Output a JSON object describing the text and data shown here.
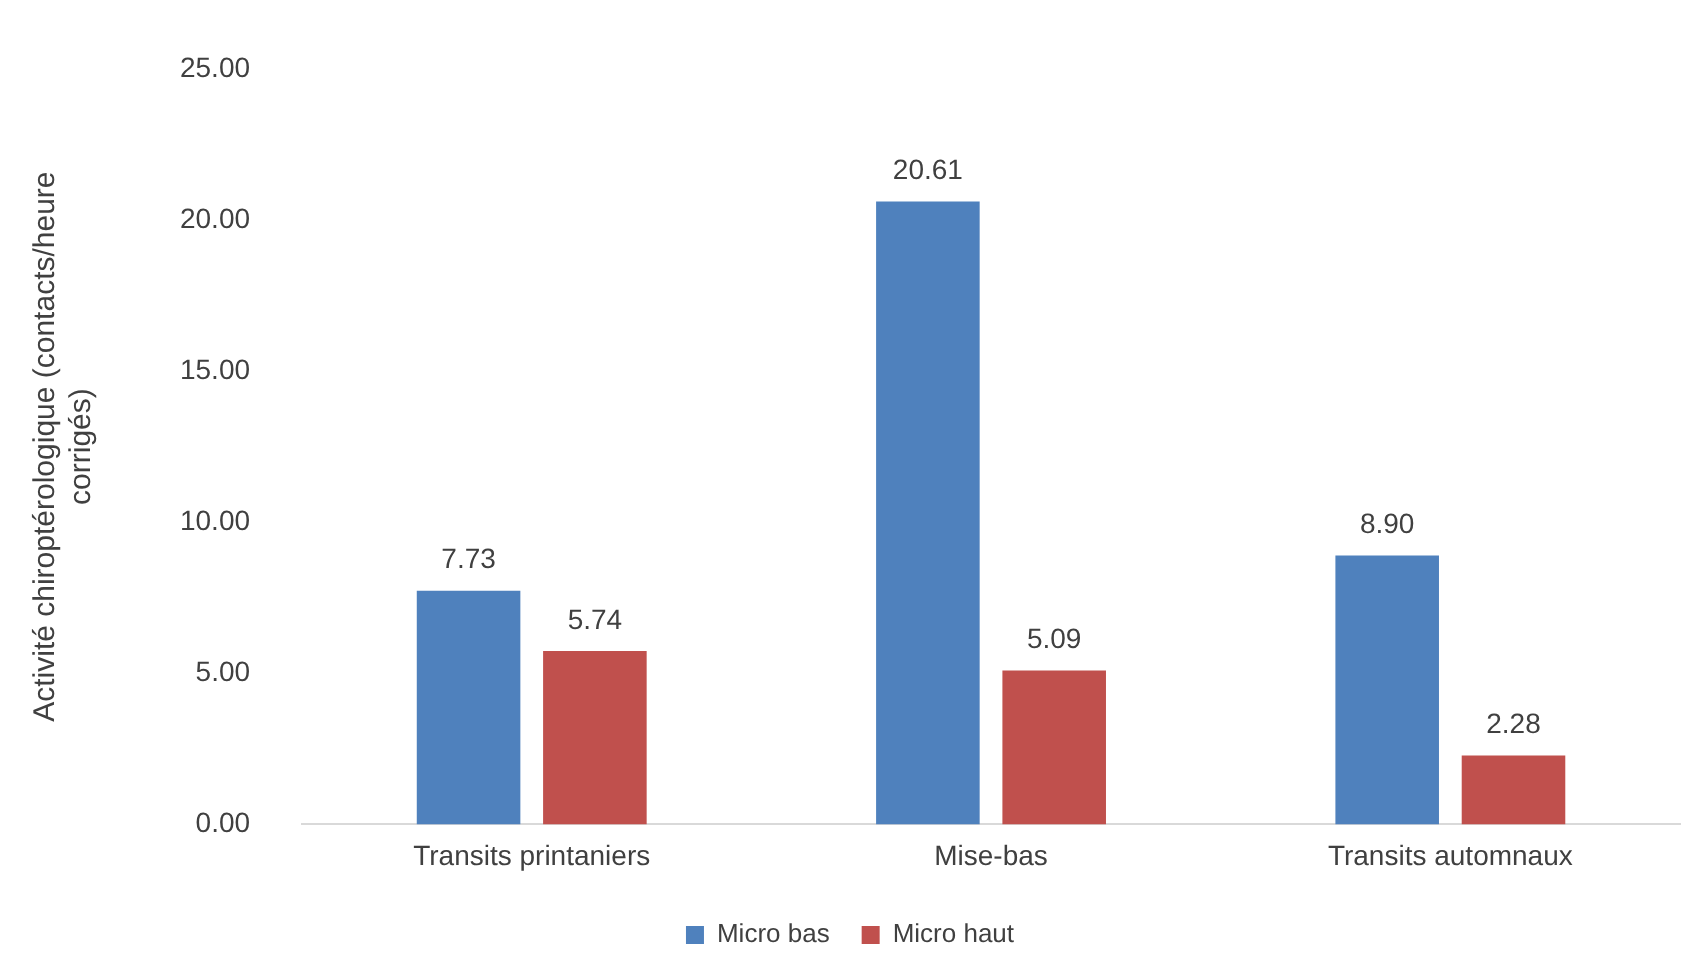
{
  "chart_data": {
    "type": "bar",
    "ylabel": "Activité chiroptérologique (contacts/heure corrigés)",
    "categories": [
      "Transits printaniers",
      "Mise-bas",
      "Transits automnaux"
    ],
    "series": [
      {
        "name": "Micro bas",
        "color": "#4f81bd",
        "values": [
          7.73,
          20.61,
          8.9
        ],
        "value_labels": [
          "7.73",
          "20.61",
          "8.90"
        ]
      },
      {
        "name": "Micro haut",
        "color": "#c0504d",
        "values": [
          5.74,
          5.09,
          2.28
        ],
        "value_labels": [
          "5.74",
          "5.09",
          "2.28"
        ]
      }
    ],
    "ylim": [
      0,
      25
    ],
    "yticks": [
      {
        "value": 0,
        "label": "0.00"
      },
      {
        "value": 5,
        "label": "5.00"
      },
      {
        "value": 10,
        "label": "10.00"
      },
      {
        "value": 15,
        "label": "15.00"
      },
      {
        "value": 20,
        "label": "20.00"
      },
      {
        "value": 25,
        "label": "25.00"
      }
    ],
    "grid": false,
    "legend": "bottom"
  }
}
